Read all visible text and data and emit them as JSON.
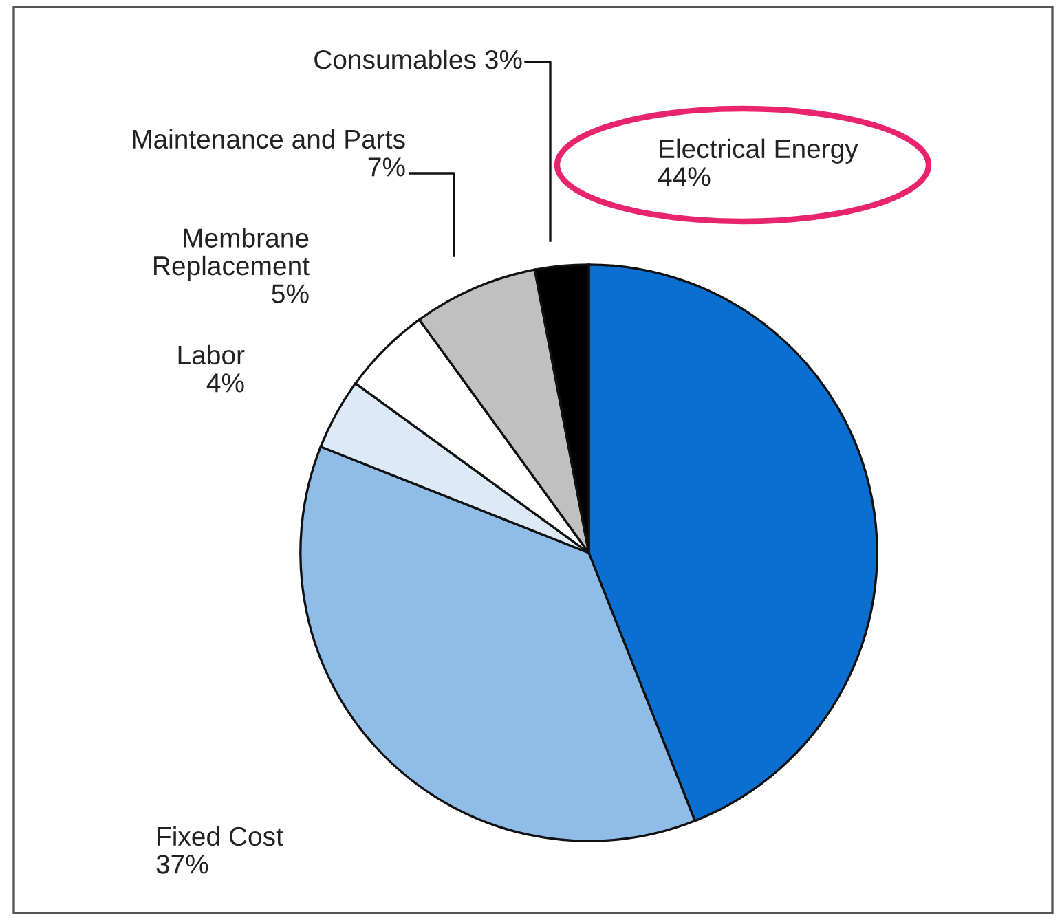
{
  "chart_data": {
    "type": "pie",
    "categories": [
      "Electrical Energy",
      "Fixed Cost",
      "Labor",
      "Membrane\nReplacement",
      "Maintenance and Parts",
      "Consumables"
    ],
    "values": [
      44,
      37,
      4,
      5,
      7,
      3
    ],
    "colors": [
      "#0a6fd0",
      "#8fbde8",
      "#dce9f7",
      "#ffffff",
      "#c0c0c0",
      "#000000"
    ],
    "value_labels": [
      "44%",
      "37%",
      "4%",
      "5%",
      "7%",
      "3%"
    ],
    "legend": false
  }
}
